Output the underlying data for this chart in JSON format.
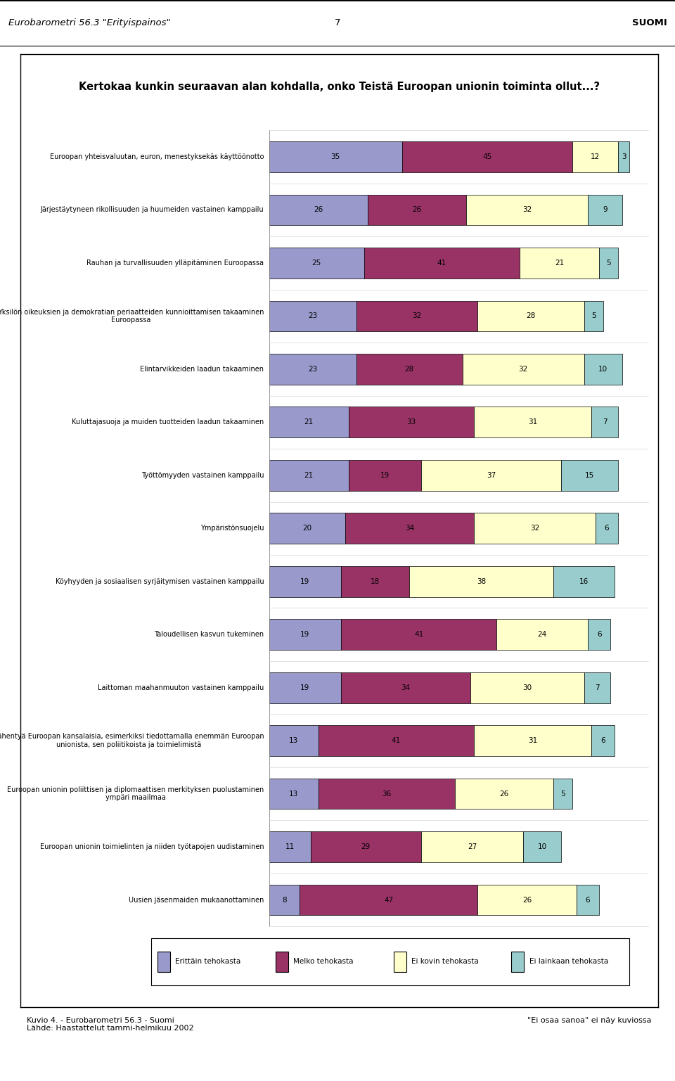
{
  "title": "Kertokaa kunkin seuraavan alan kohdalla, onko Teistä Euroopan unionin toiminta ollut...?",
  "categories": [
    "Euroopan yhteisvaluutan, euron, menestyksekäs käyttöönotto",
    "Järjestäytyneen rikollisuuden ja huumeiden vastainen kamppailu",
    "Rauhan ja turvallisuuden ylläpitäminen Euroopassa",
    "Yksilön oikeuksien ja demokratian periaatteiden kunnioittamisen takaaminen\nEuroopassa",
    "Elintarvikkeiden laadun takaaminen",
    "Kuluttajasuoja ja muiden tuotteiden laadun takaaminen",
    "Työttömyyden vastainen kamppailu",
    "Ympäristönsuojelu",
    "Köyhyyden ja sosiaalisen syrjäitymisen vastainen kamppailu",
    "Taloudellisen kasvun tukeminen",
    "Laittoman maahanmuuton vastainen kamppailu",
    "Lähentyä Euroopan kansalaisia, esimerkiksi tiedottamalla enemmän Euroopan\nunionista, sen poliitikoista ja toimielimistä",
    "Euroopan unionin poliittisen ja diplomaattisen merkityksen puolustaminen\nympäri maailmaa",
    "Euroopan unionin toimielinten ja niiden työtapojen uudistaminen",
    "Uusien jäsenmaiden mukaanottaminen"
  ],
  "erittain": [
    35,
    26,
    25,
    23,
    23,
    21,
    21,
    20,
    19,
    19,
    19,
    13,
    13,
    11,
    8
  ],
  "melko": [
    45,
    26,
    41,
    32,
    28,
    33,
    19,
    34,
    18,
    41,
    34,
    41,
    36,
    29,
    47
  ],
  "ei_kovin": [
    12,
    32,
    21,
    28,
    32,
    31,
    37,
    32,
    38,
    24,
    30,
    31,
    26,
    27,
    26
  ],
  "ei_lainkaan": [
    3,
    9,
    5,
    5,
    10,
    7,
    15,
    6,
    16,
    6,
    7,
    6,
    5,
    10,
    6
  ],
  "color_erittain": "#9999CC",
  "color_melko": "#993366",
  "color_ei_kovin": "#FFFFCC",
  "color_ei_lainkaan": "#99CCCC",
  "legend_labels": [
    "Erittäin tehokasta",
    "Melko tehokasta",
    "Ei kovin tehokasta",
    "Ei lainkaan tehokasta"
  ],
  "footer_left": "Kuvio 4. - Eurobarometri 56.3 - Suomi\nLähde: Haastattelut tammi-helmikuu 2002",
  "footer_right": "\"Ei osaa sanoa\" ei näy kuviossa",
  "header_left": "Eurobarometri 56.3 \"Erityispainos\"",
  "header_center": "7",
  "header_right": "SUOMI"
}
